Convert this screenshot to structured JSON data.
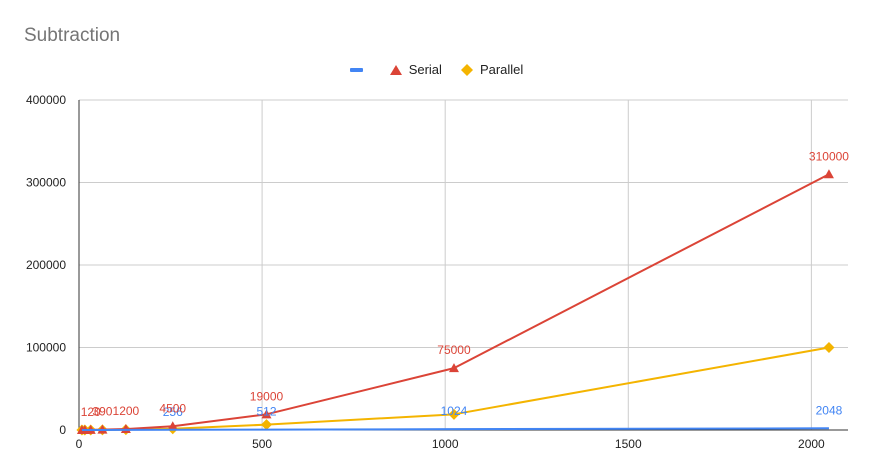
{
  "chart_data": {
    "type": "line",
    "title": "Subtraction",
    "xlabel": "",
    "ylabel": "",
    "xlim": [
      0,
      2100
    ],
    "ylim": [
      0,
      400000
    ],
    "x_ticks": [
      "0",
      "500",
      "1000",
      "1500",
      "2000"
    ],
    "y_ticks": [
      "0",
      "100000",
      "200000",
      "300000",
      "400000"
    ],
    "grid": true,
    "legend_position": "top",
    "x": [
      8,
      16,
      32,
      64,
      128,
      256,
      512,
      1024,
      2048
    ],
    "series": [
      {
        "name": "",
        "color": "#4285f4",
        "marker": "line",
        "values": [
          8,
          16,
          32,
          64,
          128,
          256,
          512,
          1024,
          2048
        ],
        "labels": [
          "",
          "",
          "",
          "",
          "",
          "256",
          "512",
          "1024",
          "2048"
        ]
      },
      {
        "name": "Serial",
        "color": "#db4437",
        "marker": "triangle",
        "values": [
          10,
          30,
          120,
          390,
          1200,
          4500,
          19000,
          75000,
          310000
        ],
        "labels": [
          "",
          "",
          "120",
          "390",
          "1200",
          "4500",
          "19000",
          "75000",
          "310000"
        ]
      },
      {
        "name": "Parallel",
        "color": "#f4b400",
        "marker": "diamond",
        "values": [
          5,
          15,
          40,
          130,
          400,
          1500,
          6500,
          19000,
          100000
        ],
        "labels": [
          "",
          "",
          "",
          "",
          "",
          "",
          "",
          "",
          ""
        ]
      }
    ]
  }
}
